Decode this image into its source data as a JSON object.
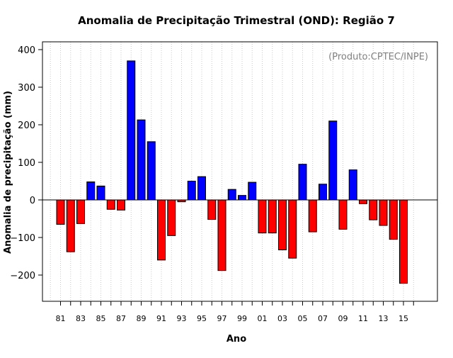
{
  "chart_data": {
    "type": "bar",
    "title": "Anomalia de Precipitação Trimestral (OND): Região 7",
    "xlabel": "Ano",
    "ylabel": "Anomalia de precipitação (mm)",
    "credit": "(Produto:CPTEC/INPE)",
    "ylim": [
      -270,
      420
    ],
    "yticks": [
      -200,
      -100,
      0,
      100,
      200,
      300,
      400
    ],
    "years": [
      "81",
      "82",
      "83",
      "84",
      "85",
      "86",
      "87",
      "88",
      "89",
      "90",
      "91",
      "92",
      "93",
      "94",
      "95",
      "96",
      "97",
      "98",
      "99",
      "00",
      "01",
      "02",
      "03",
      "04",
      "05",
      "06",
      "07",
      "08",
      "09",
      "10",
      "11",
      "12",
      "13",
      "14",
      "15"
    ],
    "values": [
      -65,
      -138,
      -63,
      48,
      37,
      -25,
      -27,
      370,
      213,
      155,
      -160,
      -95,
      -5,
      50,
      62,
      -52,
      -188,
      28,
      12,
      47,
      -88,
      -88,
      -133,
      -155,
      95,
      -85,
      42,
      210,
      -78,
      80,
      -10,
      -53,
      -68,
      -105,
      -222
    ],
    "tick_labels": [
      "81",
      "83",
      "85",
      "87",
      "89",
      "91",
      "93",
      "95",
      "97",
      "99",
      "01",
      "03",
      "05",
      "07",
      "09",
      "11",
      "13",
      "15"
    ],
    "colors": {
      "positive": "#0000ff",
      "negative": "#ff0000",
      "grid": "#c8c8c8",
      "zero_line": "#000000"
    }
  }
}
